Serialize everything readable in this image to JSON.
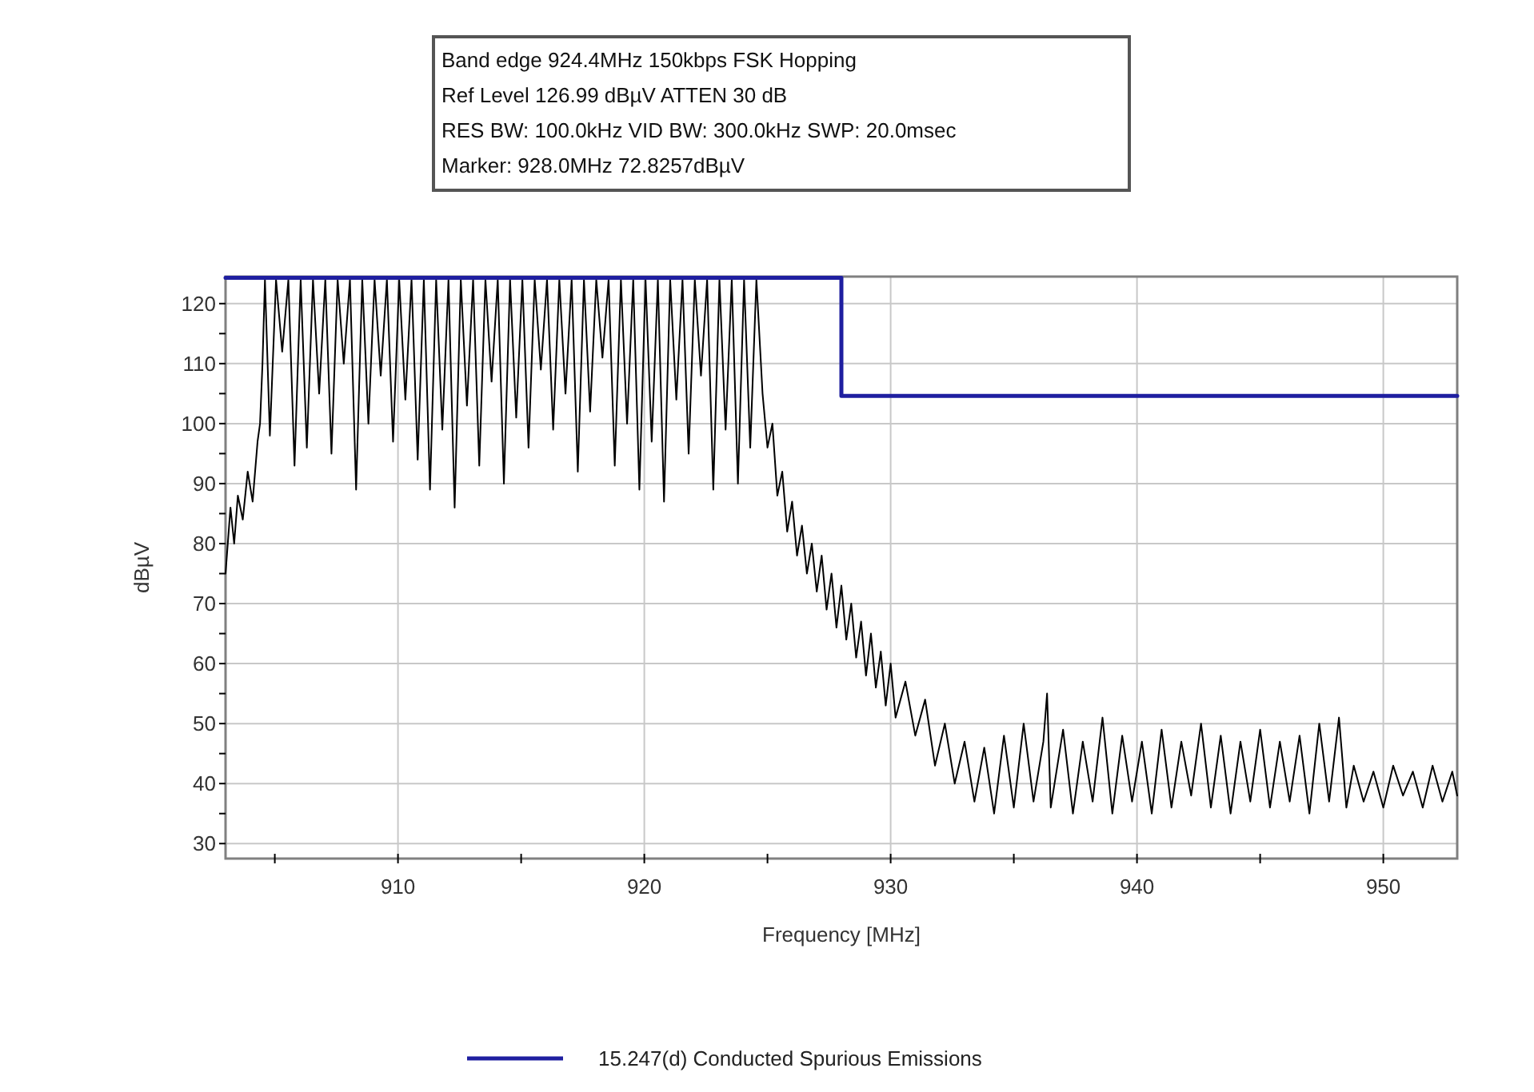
{
  "chart_data": {
    "type": "line",
    "xlabel": "Frequency [MHz]",
    "ylabel": "dBµV",
    "annotations": [
      "Band edge 924.4MHz 150kbps FSK Hopping",
      "Ref Level 126.99 dBµV    ATTEN 30 dB",
      "RES BW: 100.0kHz  VID BW: 300.0kHz  SWP: 20.0msec",
      "Marker: 928.0MHz  72.8257dBµV"
    ],
    "xlim": [
      903,
      953
    ],
    "ylim": [
      27.5,
      124.5
    ],
    "xticks": [
      {
        "value": 905,
        "label": null
      },
      910,
      {
        "value": 915,
        "label": null
      },
      920,
      {
        "value": 925,
        "label": null
      },
      930,
      {
        "value": 935,
        "label": null
      },
      940,
      {
        "value": 945,
        "label": null
      },
      950
    ],
    "yticks": [
      30,
      {
        "value": 35,
        "label": null
      },
      40,
      {
        "value": 45,
        "label": null
      },
      50,
      {
        "value": 55,
        "label": null
      },
      60,
      {
        "value": 65,
        "label": null
      },
      70,
      {
        "value": 75,
        "label": null
      },
      80,
      {
        "value": 85,
        "label": null
      },
      90,
      {
        "value": 95,
        "label": null
      },
      100,
      {
        "value": 105,
        "label": null
      },
      110,
      {
        "value": 115,
        "label": null
      },
      120
    ],
    "grid": true,
    "legend": "bottom",
    "line_style": "solid",
    "marker": "none",
    "series": [
      {
        "color": "#000000",
        "x": [
          903.0,
          903.2,
          903.35,
          903.5,
          903.7,
          903.9,
          904.1,
          904.3,
          904.4,
          904.5,
          904.6,
          904.8,
          905.05,
          905.3,
          905.55,
          905.8,
          906.05,
          906.3,
          906.55,
          906.8,
          907.05,
          907.3,
          907.55,
          907.8,
          908.05,
          908.3,
          908.55,
          908.8,
          909.05,
          909.3,
          909.55,
          909.8,
          910.05,
          910.3,
          910.55,
          910.8,
          911.05,
          911.3,
          911.55,
          911.8,
          912.05,
          912.3,
          912.55,
          912.8,
          913.05,
          913.3,
          913.55,
          913.8,
          914.05,
          914.3,
          914.55,
          914.8,
          915.05,
          915.3,
          915.55,
          915.8,
          916.05,
          916.3,
          916.55,
          916.8,
          917.05,
          917.3,
          917.55,
          917.8,
          918.05,
          918.3,
          918.55,
          918.8,
          919.05,
          919.3,
          919.55,
          919.8,
          920.05,
          920.3,
          920.55,
          920.8,
          921.05,
          921.3,
          921.55,
          921.8,
          922.05,
          922.3,
          922.55,
          922.8,
          923.05,
          923.3,
          923.55,
          923.8,
          924.05,
          924.3,
          924.55,
          924.8,
          925.0,
          925.2,
          925.4,
          925.6,
          925.8,
          926.0,
          926.2,
          926.4,
          926.6,
          926.8,
          927.0,
          927.2,
          927.4,
          927.6,
          927.8,
          928.0,
          928.2,
          928.4,
          928.6,
          928.8,
          929.0,
          929.2,
          929.4,
          929.6,
          929.8,
          930.0,
          930.2,
          930.6,
          931.0,
          931.4,
          931.8,
          932.2,
          932.6,
          933.0,
          933.4,
          933.8,
          934.2,
          934.6,
          935.0,
          935.4,
          935.8,
          936.2,
          936.35,
          936.5,
          937.0,
          937.4,
          937.8,
          938.2,
          938.6,
          939.0,
          939.4,
          939.8,
          940.2,
          940.6,
          941.0,
          941.4,
          941.8,
          942.2,
          942.6,
          943.0,
          943.4,
          943.8,
          944.2,
          944.6,
          945.0,
          945.4,
          945.8,
          946.2,
          946.6,
          947.0,
          947.4,
          947.8,
          948.2,
          948.5,
          948.8,
          949.2,
          949.6,
          950.0,
          950.4,
          950.8,
          951.2,
          951.6,
          952.0,
          952.4,
          952.8,
          953.0
        ],
        "values": [
          75,
          86,
          80,
          88,
          84,
          92,
          87,
          97,
          100,
          110,
          124,
          98,
          124,
          112,
          124,
          93,
          124,
          96,
          124,
          105,
          124,
          95,
          124,
          110,
          124,
          89,
          124,
          100,
          124,
          108,
          124,
          97,
          124,
          104,
          124,
          94,
          124,
          89,
          124,
          99,
          124,
          86,
          124,
          103,
          124,
          93,
          124,
          107,
          124,
          90,
          124,
          101,
          124,
          96,
          124,
          109,
          124,
          99,
          124,
          105,
          124,
          92,
          124,
          102,
          124,
          111,
          124,
          93,
          124,
          100,
          124,
          89,
          124,
          97,
          124,
          87,
          124,
          104,
          124,
          95,
          124,
          108,
          124,
          89,
          124,
          99,
          124,
          90,
          124,
          96,
          124,
          105,
          96,
          100,
          88,
          92,
          82,
          87,
          78,
          83,
          75,
          80,
          72,
          78,
          69,
          75,
          66,
          73,
          64,
          70,
          61,
          67,
          58,
          65,
          56,
          62,
          53,
          60,
          51,
          57,
          48,
          54,
          43,
          50,
          40,
          47,
          37,
          46,
          35,
          48,
          36,
          50,
          37,
          47,
          55,
          36,
          49,
          35,
          47,
          37,
          51,
          35,
          48,
          37,
          47,
          35,
          49,
          36,
          47,
          38,
          50,
          36,
          48,
          35,
          47,
          37,
          49,
          36,
          47,
          37,
          48,
          35,
          50,
          37,
          51,
          36,
          43,
          37,
          42,
          36,
          43,
          38,
          42,
          36,
          43,
          37,
          42,
          38
        ]
      },
      {
        "name": "15.247(d) Conducted Spurious Emissions",
        "color": "#1f1fa0",
        "x": [
          903,
          928,
          928,
          953
        ],
        "values": [
          124.3,
          124.3,
          104.6,
          104.6
        ]
      }
    ]
  }
}
